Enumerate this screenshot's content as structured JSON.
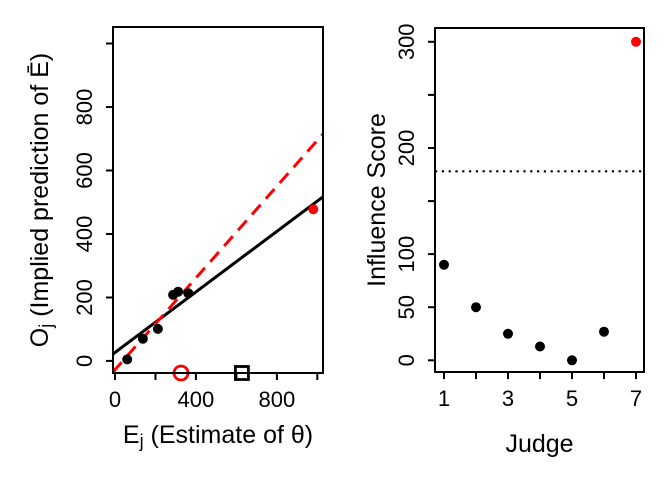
{
  "figure": {
    "background": "#ffffff",
    "description": "Two-panel R-style statistical figure: judge estimate calibration scatter and per-judge influence scores"
  },
  "colors": {
    "primary": "#000000",
    "highlight": "#ff0000",
    "open_marker_fill": "#ffffff"
  },
  "chart_data": [
    {
      "name": "calibration-scatter",
      "type": "scatter",
      "xlabel_parts": [
        {
          "t": "E"
        },
        {
          "t": "j",
          "sub": true
        },
        {
          "t": " (Estimate of θ)"
        }
      ],
      "ylabel_parts": [
        {
          "t": "O"
        },
        {
          "t": "j",
          "sub": true
        },
        {
          "t": " (Implied prediction of Ē)"
        }
      ],
      "xlim": [
        -10,
        1028
      ],
      "ylim": [
        -38,
        1052
      ],
      "grid": false,
      "xticks": [
        0,
        200,
        400,
        600,
        800,
        1000
      ],
      "xtick_labels": [
        "0",
        "",
        "400",
        "",
        "800",
        ""
      ],
      "yticks": [
        0,
        200,
        400,
        600,
        800,
        1000
      ],
      "ytick_labels": [
        "0",
        "200",
        "400",
        "600",
        "800",
        ""
      ],
      "series": [
        {
          "name": "judges-black",
          "marker": "filled-circle",
          "color": "#000000",
          "points": [
            [
              60,
              5
            ],
            [
              138,
              70
            ],
            [
              212,
              101
            ],
            [
              287,
              208
            ],
            [
              312,
              218
            ],
            [
              362,
              213
            ]
          ]
        },
        {
          "name": "influential-judge",
          "marker": "filled-circle",
          "color": "#ff0000",
          "points": [
            [
              980,
              478
            ]
          ]
        },
        {
          "name": "axis-marker-open-circle",
          "marker": "open-circle",
          "color": "#ff0000",
          "points": [
            [
              326,
              -38
            ]
          ]
        },
        {
          "name": "axis-marker-open-square",
          "marker": "open-square",
          "color": "#000000",
          "points": [
            [
              627,
              -38
            ]
          ]
        }
      ],
      "lines": [
        {
          "name": "fit-line",
          "style": "solid",
          "color": "#000000",
          "x1": -10,
          "y1": 22,
          "x2": 1028,
          "y2": 517
        },
        {
          "name": "reference-line",
          "style": "dashed",
          "color": "#ff0000",
          "x1": -10,
          "y1": -35,
          "x2": 1028,
          "y2": 715
        }
      ]
    },
    {
      "name": "influence-plot",
      "type": "scatter",
      "xlabel_parts": [
        {
          "t": "Judge"
        }
      ],
      "ylabel_parts": [
        {
          "t": "Influence Score"
        }
      ],
      "xlim": [
        0.72,
        7.25
      ],
      "ylim": [
        -11,
        313
      ],
      "grid": false,
      "xticks": [
        1,
        2,
        3,
        4,
        5,
        6,
        7
      ],
      "xtick_labels": [
        "1",
        "",
        "3",
        "",
        "5",
        "",
        "7"
      ],
      "yticks": [
        0,
        50,
        100,
        150,
        200,
        250,
        300
      ],
      "ytick_labels": [
        "0",
        "50",
        "100",
        "",
        "200",
        "",
        "300"
      ],
      "series": [
        {
          "name": "judges-black",
          "marker": "filled-circle",
          "color": "#000000",
          "points": [
            [
              1,
              90
            ],
            [
              2,
              50
            ],
            [
              3,
              25
            ],
            [
              4,
              13
            ],
            [
              5,
              0
            ],
            [
              6,
              27
            ]
          ]
        },
        {
          "name": "influential-judge",
          "marker": "filled-circle",
          "color": "#ff0000",
          "points": [
            [
              7,
              300
            ]
          ]
        }
      ],
      "lines": [
        {
          "name": "threshold-line",
          "style": "dotted",
          "color": "#000000",
          "y": 178
        }
      ]
    }
  ]
}
